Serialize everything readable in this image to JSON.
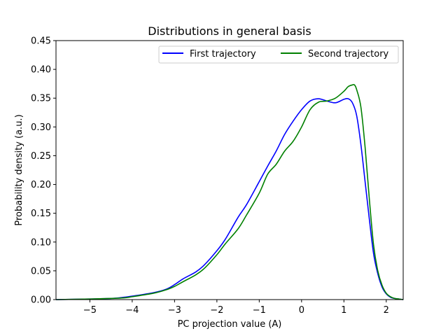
{
  "chart_data": {
    "type": "line",
    "title": "Distributions in general basis",
    "xlabel": "PC projection value (A)",
    "ylabel": "Probability density (a.u.)",
    "xlim": [
      -5.8,
      2.4
    ],
    "ylim": [
      0,
      0.45
    ],
    "xticks": [
      -5,
      -4,
      -3,
      -2,
      -1,
      0,
      1,
      2
    ],
    "xtick_labels": [
      "−5",
      "−4",
      "−3",
      "−2",
      "−1",
      "0",
      "1",
      "2"
    ],
    "yticks": [
      0.0,
      0.05,
      0.1,
      0.15,
      0.2,
      0.25,
      0.3,
      0.35,
      0.4,
      0.45
    ],
    "ytick_labels": [
      "0.00",
      "0.05",
      "0.10",
      "0.15",
      "0.20",
      "0.25",
      "0.30",
      "0.35",
      "0.40",
      "0.45"
    ],
    "grid": false,
    "legend_position": "top-right",
    "series": [
      {
        "name": "First trajectory",
        "color": "#0000ff",
        "x": [
          -5.8,
          -5.0,
          -4.5,
          -4.2,
          -4.0,
          -3.5,
          -3.2,
          -3.0,
          -2.8,
          -2.5,
          -2.3,
          -2.0,
          -1.8,
          -1.5,
          -1.3,
          -1.0,
          -0.8,
          -0.6,
          -0.4,
          -0.2,
          0.0,
          0.2,
          0.4,
          0.6,
          0.8,
          1.0,
          1.1,
          1.2,
          1.3,
          1.4,
          1.5,
          1.6,
          1.7,
          1.8,
          1.9,
          2.0,
          2.1,
          2.2,
          2.3,
          2.4
        ],
        "y": [
          0.0,
          0.001,
          0.002,
          0.004,
          0.006,
          0.012,
          0.018,
          0.026,
          0.036,
          0.048,
          0.06,
          0.085,
          0.105,
          0.143,
          0.165,
          0.205,
          0.232,
          0.258,
          0.287,
          0.31,
          0.33,
          0.345,
          0.349,
          0.345,
          0.342,
          0.348,
          0.349,
          0.342,
          0.32,
          0.27,
          0.205,
          0.14,
          0.08,
          0.045,
          0.022,
          0.01,
          0.004,
          0.002,
          0.001,
          0.0
        ]
      },
      {
        "name": "Second trajectory",
        "color": "#008000",
        "x": [
          -5.8,
          -5.0,
          -4.5,
          -4.2,
          -4.0,
          -3.5,
          -3.2,
          -3.0,
          -2.8,
          -2.5,
          -2.3,
          -2.0,
          -1.8,
          -1.5,
          -1.3,
          -1.0,
          -0.8,
          -0.6,
          -0.4,
          -0.2,
          0.0,
          0.2,
          0.4,
          0.6,
          0.8,
          1.0,
          1.1,
          1.2,
          1.25,
          1.3,
          1.4,
          1.5,
          1.6,
          1.7,
          1.8,
          1.9,
          2.0,
          2.1,
          2.2,
          2.3,
          2.4
        ],
        "y": [
          0.0,
          0.001,
          0.002,
          0.003,
          0.005,
          0.011,
          0.017,
          0.023,
          0.031,
          0.043,
          0.054,
          0.078,
          0.097,
          0.123,
          0.147,
          0.185,
          0.218,
          0.235,
          0.258,
          0.275,
          0.3,
          0.33,
          0.343,
          0.345,
          0.35,
          0.362,
          0.37,
          0.373,
          0.373,
          0.365,
          0.335,
          0.265,
          0.175,
          0.095,
          0.05,
          0.025,
          0.011,
          0.005,
          0.002,
          0.001,
          0.0
        ]
      }
    ]
  }
}
